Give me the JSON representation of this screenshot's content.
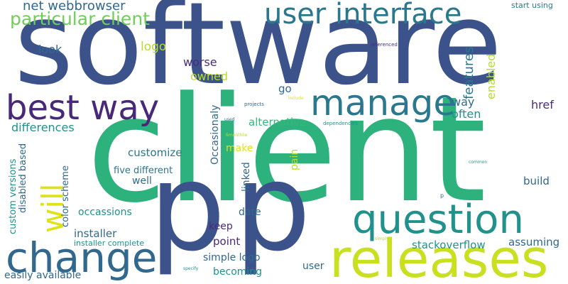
{
  "palette": {
    "navy": "#3b528b",
    "indigo": "#482878",
    "purple": "#472d7b",
    "teal": "#21918c",
    "steel": "#31688e",
    "green": "#35b779",
    "lime": "#6ece58",
    "yellowgreen": "#b5de2b",
    "yellow": "#dde318"
  },
  "words": [
    {
      "id": "software",
      "text": "software",
      "color": "#3b528b",
      "vertical": false
    },
    {
      "id": "client",
      "text": "client",
      "color": "#2db27d",
      "vertical": false
    },
    {
      "id": "p-large-1",
      "text": "p",
      "color": "#3b528b",
      "vertical": false
    },
    {
      "id": "p-large-2",
      "text": "p",
      "color": "#3b528b",
      "vertical": false
    },
    {
      "id": "releases",
      "text": "releases",
      "color": "#c8e020",
      "vertical": false
    },
    {
      "id": "question",
      "text": "question",
      "color": "#21918c",
      "vertical": false
    },
    {
      "id": "change",
      "text": "change",
      "color": "#31688e",
      "vertical": false
    },
    {
      "id": "best-way",
      "text": "best way",
      "color": "#482878",
      "vertical": false
    },
    {
      "id": "manage",
      "text": "manage",
      "color": "#2a788e",
      "vertical": false
    },
    {
      "id": "will",
      "text": "will",
      "color": "#dde318",
      "vertical": true
    },
    {
      "id": "user-interface",
      "text": "user interface",
      "color": "#2a788e",
      "vertical": false
    },
    {
      "id": "particular-client",
      "text": "particular client",
      "color": "#6ece58",
      "vertical": false
    },
    {
      "id": "net-webbrowser",
      "text": "net webbrowser",
      "color": "#31688e",
      "vertical": false
    },
    {
      "id": "logo",
      "text": "logo",
      "color": "#b5de2b",
      "vertical": false
    },
    {
      "id": "look",
      "text": "look",
      "color": "#31688e",
      "vertical": false
    },
    {
      "id": "worse",
      "text": "worse",
      "color": "#472d7b",
      "vertical": false
    },
    {
      "id": "owned",
      "text": "owned",
      "color": "#b5de2b",
      "vertical": false
    },
    {
      "id": "go",
      "text": "go",
      "color": "#31688e",
      "vertical": false
    },
    {
      "id": "features",
      "text": "features",
      "color": "#2a788e",
      "vertical": true
    },
    {
      "id": "enabled",
      "text": "enabled",
      "color": "#b5de2b",
      "vertical": true
    },
    {
      "id": "way-small",
      "text": "way",
      "color": "#31688e",
      "vertical": false
    },
    {
      "id": "often",
      "text": "often",
      "color": "#21918c",
      "vertical": false
    },
    {
      "id": "href",
      "text": "href",
      "color": "#472d7b",
      "vertical": false
    },
    {
      "id": "start-using",
      "text": "start using",
      "color": "#2a788e",
      "vertical": false
    },
    {
      "id": "differences",
      "text": "differences",
      "color": "#21918c",
      "vertical": false
    },
    {
      "id": "occasionaly",
      "text": "Occasionaly",
      "color": "#31688e",
      "vertical": true
    },
    {
      "id": "alternative",
      "text": "alternative",
      "color": "#35b779",
      "vertical": false
    },
    {
      "id": "make",
      "text": "make",
      "color": "#dde318",
      "vertical": false
    },
    {
      "id": "customize",
      "text": "customize",
      "color": "#2a788e",
      "vertical": false
    },
    {
      "id": "pain",
      "text": "pain",
      "color": "#b5de2b",
      "vertical": true
    },
    {
      "id": "linked",
      "text": "linked",
      "color": "#31688e",
      "vertical": true
    },
    {
      "id": "five-different",
      "text": "five different",
      "color": "#2a788e",
      "vertical": false
    },
    {
      "id": "well",
      "text": "well",
      "color": "#31688e",
      "vertical": false
    },
    {
      "id": "custom-versions",
      "text": "custom versions",
      "color": "#21918c",
      "vertical": true
    },
    {
      "id": "disabled-based",
      "text": "disabled based",
      "color": "#31688e",
      "vertical": true
    },
    {
      "id": "color-scheme",
      "text": "color scheme",
      "color": "#31688e",
      "vertical": true
    },
    {
      "id": "date",
      "text": "date",
      "color": "#31688e",
      "vertical": false
    },
    {
      "id": "build",
      "text": "build",
      "color": "#31688e",
      "vertical": false
    },
    {
      "id": "occassions",
      "text": "occassions",
      "color": "#21918c",
      "vertical": false
    },
    {
      "id": "keep",
      "text": "keep",
      "color": "#472d7b",
      "vertical": false
    },
    {
      "id": "installer",
      "text": "installer",
      "color": "#31688e",
      "vertical": false
    },
    {
      "id": "installer-complete",
      "text": "installer complete",
      "color": "#21918c",
      "vertical": false
    },
    {
      "id": "point",
      "text": "point",
      "color": "#482878",
      "vertical": false
    },
    {
      "id": "simple-logo",
      "text": "simple logo",
      "color": "#31688e",
      "vertical": false
    },
    {
      "id": "becoming",
      "text": "becoming",
      "color": "#21918c",
      "vertical": false
    },
    {
      "id": "easily-available",
      "text": "easily available",
      "color": "#31688e",
      "vertical": false
    },
    {
      "id": "user",
      "text": "user",
      "color": "#31688e",
      "vertical": false
    },
    {
      "id": "stackoverflow",
      "text": "stackoverflow",
      "color": "#21918c",
      "vertical": false
    },
    {
      "id": "assuming",
      "text": "assuming",
      "color": "#31688e",
      "vertical": false
    },
    {
      "id": "referenced",
      "text": "referenced",
      "color": "#472d7b",
      "vertical": false
    },
    {
      "id": "projects",
      "text": "projects",
      "color": "#31688e",
      "vertical": false
    },
    {
      "id": "include",
      "text": "include",
      "color": "#dde318",
      "vertical": false
    },
    {
      "id": "used",
      "text": "used",
      "color": "#31688e",
      "vertical": false
    },
    {
      "id": "dependencies",
      "text": "dependencies",
      "color": "#21918c",
      "vertical": false
    },
    {
      "id": "6monthlie",
      "text": "6monthlie",
      "color": "#b5de2b",
      "vertical": false
    },
    {
      "id": "common",
      "text": "common",
      "color": "#21918c",
      "vertical": false
    },
    {
      "id": "p-small",
      "text": "p",
      "color": "#31688e",
      "vertical": false
    },
    {
      "id": "simply",
      "text": "simply",
      "color": "#b5de2b",
      "vertical": false
    },
    {
      "id": "specify",
      "text": "specify",
      "color": "#21918c",
      "vertical": false
    }
  ]
}
